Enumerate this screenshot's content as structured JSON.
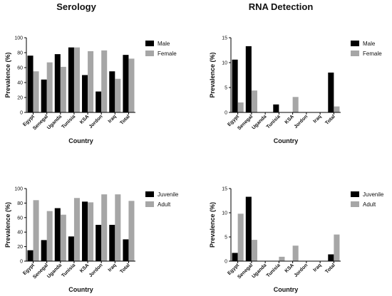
{
  "figure": {
    "column_titles": [
      "Serology",
      "RNA Detection"
    ]
  },
  "colors": {
    "series_a": "#000000",
    "series_b": "#a6a6a6"
  },
  "chart_data": [
    {
      "type": "bar",
      "panel": "top-left",
      "title": "Serology",
      "categories": [
        "Egypt",
        "Senegal",
        "Uganda",
        "Tunisia",
        "KSA",
        "Jordon",
        "Iraq",
        "Total"
      ],
      "series": [
        {
          "name": "Male",
          "values": [
            76,
            44,
            78,
            87,
            50,
            28,
            55,
            77
          ]
        },
        {
          "name": "Female",
          "values": [
            55,
            67,
            61,
            87,
            82,
            83,
            45,
            72
          ]
        }
      ],
      "xlabel": "Country",
      "ylabel": "Prevalence (%)",
      "ylim": [
        0,
        100
      ],
      "yticks": [
        0,
        20,
        40,
        60,
        80,
        100
      ],
      "grid": false,
      "legend": "right"
    },
    {
      "type": "bar",
      "panel": "top-right",
      "title": "RNA Detection",
      "categories": [
        "Egypt",
        "Senegal",
        "Uganda",
        "Tunisia",
        "KSA",
        "Jordon",
        "Iraq",
        "Total"
      ],
      "series": [
        {
          "name": "Male",
          "values": [
            10.6,
            13.3,
            0,
            1.6,
            0,
            0,
            0,
            8.0
          ]
        },
        {
          "name": "Female",
          "values": [
            2.0,
            4.4,
            0,
            0,
            3.1,
            0,
            0,
            1.2
          ]
        }
      ],
      "xlabel": "Country",
      "ylabel": "Prevalence (%)",
      "ylim": [
        0,
        15
      ],
      "yticks": [
        0,
        5,
        10,
        15
      ],
      "grid": false,
      "legend": "right"
    },
    {
      "type": "bar",
      "panel": "bottom-left",
      "categories": [
        "Egypt",
        "Senegal",
        "Uganda",
        "Tunisia",
        "KSA",
        "Jordon",
        "Iraq",
        "Total"
      ],
      "series": [
        {
          "name": "Juvenile",
          "values": [
            15,
            29,
            73,
            34,
            82,
            50,
            50,
            30
          ]
        },
        {
          "name": "Adult",
          "values": [
            84,
            69,
            64,
            87,
            81,
            92,
            92,
            83
          ]
        }
      ],
      "xlabel": "Country",
      "ylabel": "Prevalence (%)",
      "ylim": [
        0,
        100
      ],
      "yticks": [
        0,
        20,
        40,
        60,
        80,
        100
      ],
      "grid": false,
      "legend": "right"
    },
    {
      "type": "bar",
      "panel": "bottom-right",
      "categories": [
        "Egypt",
        "Senegal",
        "Uganda",
        "Tunisia",
        "KSA",
        "Jordon",
        "Iraq",
        "Total"
      ],
      "series": [
        {
          "name": "Juvenile",
          "values": [
            1.7,
            13.3,
            0,
            0,
            0,
            0,
            0,
            1.4
          ]
        },
        {
          "name": "Adult",
          "values": [
            9.8,
            4.4,
            0,
            0.9,
            3.2,
            0,
            0,
            5.5
          ]
        }
      ],
      "xlabel": "Country",
      "ylabel": "Prevalence (%)",
      "ylim": [
        0,
        15
      ],
      "yticks": [
        0,
        5,
        10,
        15
      ],
      "grid": false,
      "legend": "right"
    }
  ]
}
